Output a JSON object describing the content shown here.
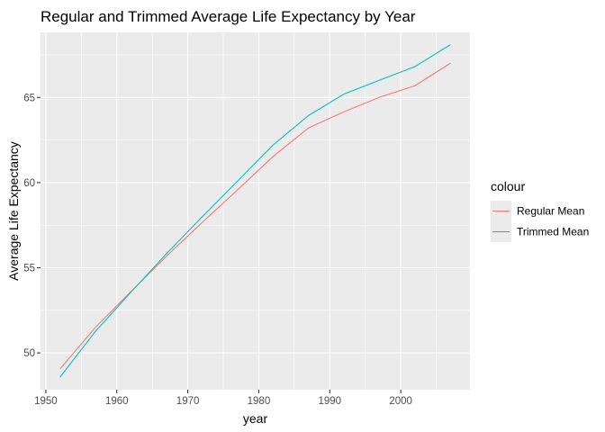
{
  "chart_data": {
    "type": "line",
    "title": "Regular and Trimmed Average Life Expectancy by Year",
    "xlabel": "year",
    "ylabel": "Average Life Expectancy",
    "xlim": [
      1949.25,
      2009.75
    ],
    "ylim": [
      47.84,
      68.82
    ],
    "x_ticks": [
      1950,
      1960,
      1970,
      1980,
      1990,
      2000
    ],
    "y_ticks": [
      50,
      55,
      60,
      65
    ],
    "grid": true,
    "background": "#ebebeb",
    "legend": {
      "title": "colour",
      "placement": "right",
      "entries": [
        "Regular Mean",
        "Trimmed Mean"
      ]
    },
    "series": [
      {
        "name": "Regular Mean",
        "color": "#f8766d",
        "x": [
          1952,
          1957,
          1962,
          1967,
          1972,
          1977,
          1982,
          1987,
          1992,
          1997,
          2002,
          2007
        ],
        "y": [
          49.06,
          51.51,
          53.61,
          55.68,
          57.65,
          59.57,
          61.53,
          63.21,
          64.16,
          65.01,
          65.69,
          67.01
        ]
      },
      {
        "name": "Trimmed Mean",
        "color": "#00bfc4",
        "x": [
          1952,
          1957,
          1962,
          1967,
          1972,
          1977,
          1982,
          1987,
          1992,
          1997,
          2002,
          2007
        ],
        "y": [
          48.58,
          51.27,
          53.57,
          55.83,
          57.98,
          60.09,
          62.2,
          63.94,
          65.2,
          66.01,
          66.81,
          68.1
        ]
      }
    ]
  }
}
